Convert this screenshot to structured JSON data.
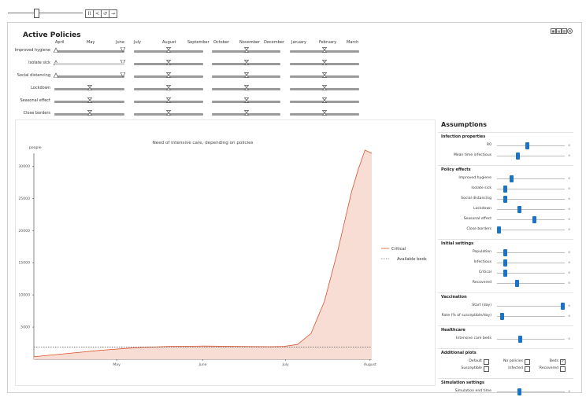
{
  "title": "Active Policies",
  "months": [
    "April",
    "May",
    "June",
    "July",
    "August",
    "September",
    "October",
    "November",
    "December",
    "January",
    "February",
    "March"
  ],
  "policies": [
    "Improved hygiene",
    "Isolate sick",
    "Social distancing",
    "Lockdown",
    "Seasonal effect",
    "Close borders"
  ],
  "toolbar": {
    "pause": "II",
    "step": "<",
    "next": "→",
    "playpause": "⏸"
  },
  "chart_data": {
    "type": "area",
    "title": "Need of intensive care, depending on policies",
    "ylabel": "people",
    "xlabel": "",
    "x_ticks": [
      "May",
      "June",
      "July",
      "August"
    ],
    "y_ticks": [
      5000,
      10000,
      15000,
      20000,
      25000,
      30000
    ],
    "ylim": [
      0,
      32000
    ],
    "series": [
      {
        "name": "Critical",
        "color": "#d9522b",
        "x": [
          0,
          0.1,
          0.2,
          0.3,
          0.4,
          0.5,
          0.6,
          0.7,
          0.74,
          0.78,
          0.82,
          0.86,
          0.9,
          0.94,
          0.96,
          0.98,
          1.0
        ],
        "values": [
          400,
          900,
          1400,
          1800,
          2000,
          2050,
          2000,
          1950,
          2000,
          2300,
          4000,
          9000,
          17000,
          26000,
          29500,
          32500,
          32000
        ]
      },
      {
        "name": "Available beds",
        "color": "#333333",
        "dashed": true,
        "x": [
          0,
          1.0
        ],
        "values": [
          1900,
          1900
        ]
      }
    ]
  },
  "assumptions": {
    "title": "Assumptions",
    "sections": [
      {
        "title": "Infection properties",
        "rows": [
          {
            "label": "R0",
            "value": 0.45
          },
          {
            "label": "Mean time infectious",
            "value": 0.3
          }
        ]
      },
      {
        "title": "Policy effects",
        "rows": [
          {
            "label": "Improved hygiene",
            "value": 0.2
          },
          {
            "label": "Isolate sick",
            "value": 0.1
          },
          {
            "label": "Social distancing",
            "value": 0.1
          },
          {
            "label": "Lockdown",
            "value": 0.32
          },
          {
            "label": "Seasonal effect",
            "value": 0.55
          },
          {
            "label": "Close borders",
            "value": 0.0
          }
        ]
      },
      {
        "title": "Initial settings",
        "rows": [
          {
            "label": "Population",
            "value": 0.1
          },
          {
            "label": "Infectious",
            "value": 0.1
          },
          {
            "label": "Critical",
            "value": 0.1
          },
          {
            "label": "Recovered",
            "value": 0.28
          }
        ]
      },
      {
        "title": "Vaccination",
        "rows": [
          {
            "label": "Start (day)",
            "value": 1.0
          },
          {
            "label": "Rate (% of susceptible/day)",
            "value": 0.05
          }
        ]
      },
      {
        "title": "Healthcare",
        "rows": [
          {
            "label": "Intensive care beds",
            "value": 0.33
          }
        ]
      },
      {
        "title": "Additional plots",
        "checkboxes": [
          {
            "label": "Default",
            "checked": false
          },
          {
            "label": "No policies",
            "checked": false
          },
          {
            "label": "Beds",
            "checked": true
          },
          {
            "label": "Susceptible",
            "checked": false
          },
          {
            "label": "Infected",
            "checked": false
          },
          {
            "label": "Recovered",
            "checked": false
          }
        ]
      },
      {
        "title": "Simulation settings",
        "rows": [
          {
            "label": "Simulation end time",
            "value": 0.32
          }
        ]
      }
    ]
  }
}
